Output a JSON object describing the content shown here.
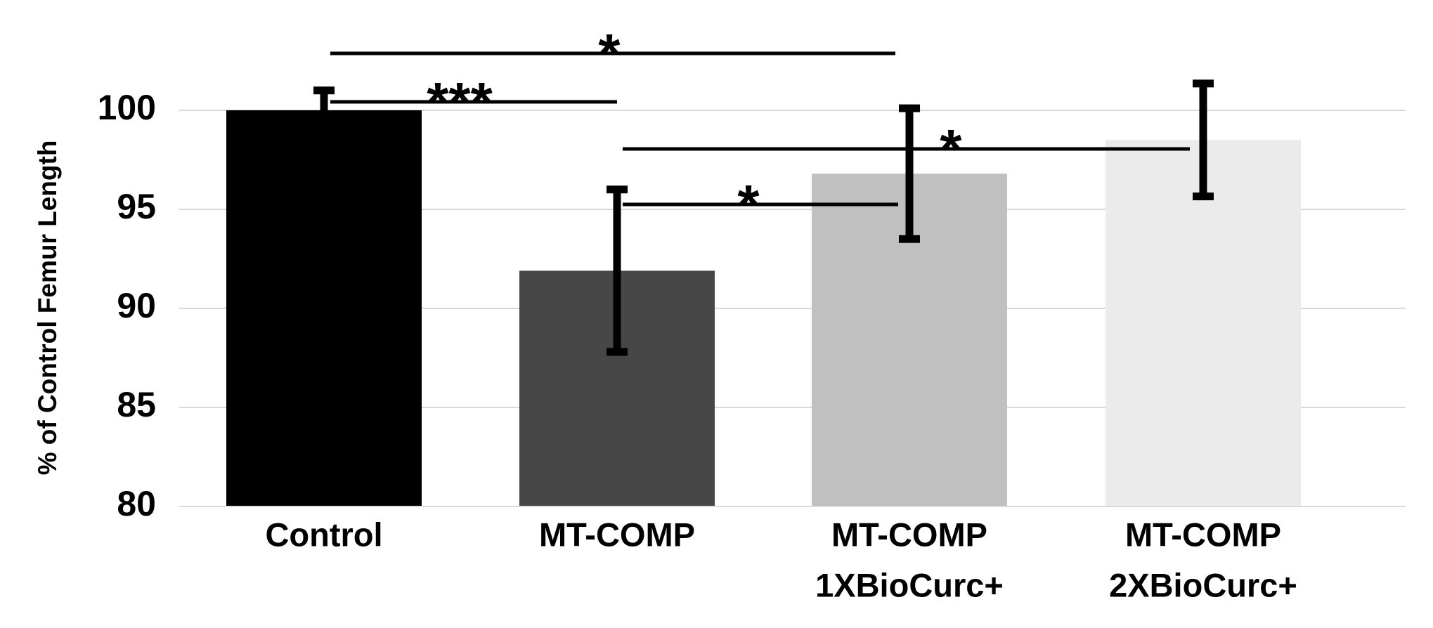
{
  "chart_data": {
    "type": "bar",
    "y_label": "% of Control Femur Length",
    "categories": [
      [
        "Control"
      ],
      [
        "MT-COMP"
      ],
      [
        "MT-COMP",
        "1XBioCurc+"
      ],
      [
        "MT-COMP",
        "2XBioCurc+"
      ]
    ],
    "values": [
      100,
      91.9,
      96.8,
      98.5
    ],
    "errors": [
      1,
      4.1,
      3.3,
      2.85
    ],
    "colors": [
      "#000000",
      "#474747",
      "#c0c0c0",
      "#ebebeb"
    ],
    "ylim": [
      80,
      101.3
    ],
    "yticks": [
      80,
      85,
      90,
      95,
      100
    ],
    "grid": true,
    "annotations": [
      "*",
      "***",
      "*",
      "*"
    ]
  }
}
